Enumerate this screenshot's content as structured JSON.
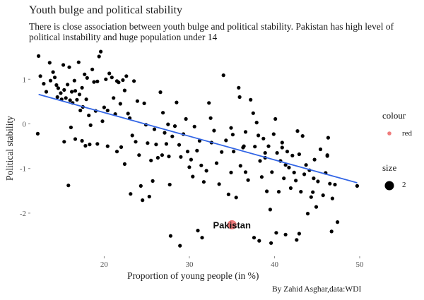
{
  "title": "Youth bulge and political stability",
  "subtitle": "There is close association between youth bulge and political stability. Pakistan has high level of political instability and huge population under 14",
  "caption": "By Zahid Asghar,data:WDI",
  "legend": {
    "colour_title": "colour",
    "colour_label": "red",
    "size_title": "size",
    "size_label": "2"
  },
  "colors": {
    "points": "#000000",
    "trend": "#3366e6",
    "highlight": "#ef7b7b"
  },
  "chart_data": {
    "type": "scatter",
    "xlabel": "Proportion of young people (in %)",
    "ylabel": "Political stability",
    "xlim": [
      11.5,
      50.5
    ],
    "ylim": [
      -2.95,
      1.7
    ],
    "xticks": [
      20,
      30,
      40,
      50
    ],
    "yticks": [
      -2,
      -1,
      0,
      1
    ],
    "grid": false,
    "trend_line": {
      "x": [
        12.3,
        49.7
      ],
      "y": [
        0.66,
        -1.32
      ]
    },
    "highlight": {
      "label": "Pakistan",
      "x": 35.0,
      "y": -2.26
    },
    "points": [
      [
        12.3,
        1.52
      ],
      [
        12.5,
        1.07
      ],
      [
        12.2,
        -0.22
      ],
      [
        12.9,
        0.9
      ],
      [
        13.2,
        0.72
      ],
      [
        13.6,
        1.37
      ],
      [
        13.7,
        0.97
      ],
      [
        14.0,
        1.16
      ],
      [
        14.2,
        1.04
      ],
      [
        14.4,
        0.87
      ],
      [
        14.6,
        0.8
      ],
      [
        14.5,
        0.6
      ],
      [
        14.9,
        0.69
      ],
      [
        15.0,
        0.55
      ],
      [
        15.2,
        1.32
      ],
      [
        15.3,
        0.76
      ],
      [
        15.5,
        0.58
      ],
      [
        15.7,
        0.88
      ],
      [
        15.9,
        1.27
      ],
      [
        16.0,
        0.53
      ],
      [
        16.2,
        0.72
      ],
      [
        16.3,
        0.47
      ],
      [
        16.5,
        0.97
      ],
      [
        16.6,
        0.74
      ],
      [
        16.8,
        0.54
      ],
      [
        17.0,
        1.38
      ],
      [
        17.1,
        0.66
      ],
      [
        17.2,
        0.3
      ],
      [
        17.4,
        0.81
      ],
      [
        17.5,
        0.38
      ],
      [
        17.7,
        1.11
      ],
      [
        17.9,
        0.55
      ],
      [
        18.0,
        1.03
      ],
      [
        18.2,
        0.19
      ],
      [
        18.4,
        -0.03
      ],
      [
        18.6,
        1.22
      ],
      [
        18.8,
        0.94
      ],
      [
        19.0,
        0.29
      ],
      [
        19.2,
        0.95
      ],
      [
        19.4,
        1.51
      ],
      [
        19.6,
        1.62
      ],
      [
        19.8,
        0.06
      ],
      [
        20.0,
        0.37
      ],
      [
        20.2,
        1.0
      ],
      [
        20.4,
        0.3
      ],
      [
        20.6,
        1.13
      ],
      [
        20.9,
        1.04
      ],
      [
        21.1,
        0.58
      ],
      [
        21.3,
        0.22
      ],
      [
        21.5,
        0.96
      ],
      [
        21.7,
        0.93
      ],
      [
        21.9,
        0.45
      ],
      [
        22.2,
        0.98
      ],
      [
        22.4,
        0.75
      ],
      [
        22.6,
        1.07
      ],
      [
        22.8,
        0.23
      ],
      [
        23.0,
        0.13
      ],
      [
        23.3,
        -0.26
      ],
      [
        23.5,
        0.96
      ],
      [
        23.7,
        -0.4
      ],
      [
        23.9,
        0.51
      ],
      [
        24.1,
        -0.7
      ],
      [
        24.3,
        -1.39
      ],
      [
        24.5,
        -1.71
      ],
      [
        24.7,
        0.46
      ],
      [
        24.9,
        -0.02
      ],
      [
        25.1,
        -0.43
      ],
      [
        25.3,
        -1.63
      ],
      [
        25.5,
        -0.82
      ],
      [
        25.7,
        -1.28
      ],
      [
        25.9,
        -0.12
      ],
      [
        26.1,
        -0.46
      ],
      [
        26.3,
        -0.76
      ],
      [
        26.6,
        0.71
      ],
      [
        26.9,
        0.25
      ],
      [
        27.1,
        -0.2
      ],
      [
        27.3,
        -0.45
      ],
      [
        27.5,
        -0.01
      ],
      [
        27.7,
        -1.36
      ],
      [
        28.0,
        -0.28
      ],
      [
        28.3,
        -0.05
      ],
      [
        28.5,
        0.48
      ],
      [
        28.8,
        -0.47
      ],
      [
        29.0,
        -0.74
      ],
      [
        29.3,
        -0.23
      ],
      [
        29.6,
        0.11
      ],
      [
        29.8,
        -0.62
      ],
      [
        30.0,
        -0.97
      ],
      [
        30.2,
        -0.8
      ],
      [
        30.4,
        -1.18
      ],
      [
        30.6,
        -0.06
      ],
      [
        30.9,
        -0.6
      ],
      [
        31.2,
        -0.38
      ],
      [
        31.4,
        -0.93
      ],
      [
        31.7,
        -1.3
      ],
      [
        32.0,
        -1.05
      ],
      [
        32.3,
        0.47
      ],
      [
        32.6,
        -0.42
      ],
      [
        32.9,
        -0.15
      ],
      [
        33.2,
        -0.88
      ],
      [
        33.5,
        -1.35
      ],
      [
        33.8,
        -0.63
      ],
      [
        34.0,
        1.09
      ],
      [
        34.3,
        -0.37
      ],
      [
        34.6,
        -1.58
      ],
      [
        34.9,
        -1.09
      ],
      [
        35.2,
        -0.62
      ],
      [
        35.5,
        -1.65
      ],
      [
        35.8,
        0.81
      ],
      [
        36.0,
        -0.94
      ],
      [
        36.3,
        -0.53
      ],
      [
        36.6,
        -1.08
      ],
      [
        36.9,
        -1.26
      ],
      [
        37.2,
        0.54
      ],
      [
        37.5,
        0.24
      ],
      [
        37.7,
        -0.51
      ],
      [
        37.9,
        0.03
      ],
      [
        38.1,
        -0.26
      ],
      [
        38.3,
        -0.83
      ],
      [
        38.5,
        -1.19
      ],
      [
        38.7,
        -0.33
      ],
      [
        38.9,
        -0.76
      ],
      [
        39.1,
        -1.51
      ],
      [
        39.3,
        -0.5
      ],
      [
        39.5,
        -1.92
      ],
      [
        39.7,
        -1.08
      ],
      [
        39.9,
        -0.23
      ],
      [
        40.1,
        0.11
      ],
      [
        40.3,
        -0.65
      ],
      [
        40.5,
        -1.52
      ],
      [
        40.7,
        -0.83
      ],
      [
        40.9,
        -0.42
      ],
      [
        41.1,
        -1.22
      ],
      [
        41.3,
        -0.92
      ],
      [
        41.5,
        -0.62
      ],
      [
        41.7,
        -0.98
      ],
      [
        41.9,
        -1.44
      ],
      [
        42.1,
        -0.71
      ],
      [
        42.3,
        -1.09
      ],
      [
        42.5,
        -1.27
      ],
      [
        42.7,
        -0.16
      ],
      [
        42.9,
        -0.68
      ],
      [
        43.1,
        -1.52
      ],
      [
        43.3,
        -0.27
      ],
      [
        43.5,
        -1.13
      ],
      [
        43.7,
        -0.92
      ],
      [
        43.9,
        -2.01
      ],
      [
        44.1,
        -1.04
      ],
      [
        44.3,
        -1.64
      ],
      [
        44.5,
        -1.53
      ],
      [
        44.7,
        -0.8
      ],
      [
        44.9,
        -1.86
      ],
      [
        45.1,
        -1.29
      ],
      [
        45.4,
        -0.57
      ],
      [
        45.7,
        -1.6
      ],
      [
        46.0,
        -1.1
      ],
      [
        46.2,
        -0.72
      ],
      [
        46.5,
        -1.34
      ],
      [
        46.8,
        -1.67
      ],
      [
        47.1,
        -1.36
      ],
      [
        21.5,
        -0.62
      ],
      [
        22.4,
        -0.9
      ],
      [
        23.1,
        -1.57
      ],
      [
        22.0,
        -0.52
      ],
      [
        26.8,
        -0.7
      ],
      [
        27.6,
        -0.73
      ],
      [
        31.0,
        -2.39
      ],
      [
        31.5,
        -2.55
      ],
      [
        32.5,
        0.13
      ],
      [
        37.6,
        -2.55
      ],
      [
        38.2,
        -2.62
      ],
      [
        39.6,
        -2.67
      ],
      [
        40.2,
        -2.44
      ],
      [
        41.3,
        -2.48
      ],
      [
        42.6,
        -2.6
      ],
      [
        42.9,
        -2.46
      ],
      [
        27.8,
        -2.51
      ],
      [
        28.9,
        -2.73
      ],
      [
        46.7,
        -2.41
      ],
      [
        47.4,
        -2.2
      ],
      [
        49.7,
        -1.39
      ],
      [
        17.4,
        -0.38
      ],
      [
        17.8,
        -0.49
      ],
      [
        18.3,
        -0.46
      ],
      [
        19.2,
        -0.45
      ],
      [
        20.4,
        -0.5
      ],
      [
        15.3,
        -0.4
      ],
      [
        15.8,
        -1.38
      ],
      [
        16.6,
        -0.34
      ],
      [
        16.1,
        -0.08
      ],
      [
        34.9,
        -0.09
      ],
      [
        36.4,
        -0.5
      ],
      [
        35.9,
        0.6
      ],
      [
        36.6,
        -0.18
      ],
      [
        35.1,
        -0.24
      ],
      [
        46.2,
        -0.7
      ],
      [
        46.3,
        -0.31
      ],
      [
        44.6,
        -1.22
      ],
      [
        40.9,
        -0.53
      ],
      [
        38.9,
        -0.65
      ]
    ]
  }
}
